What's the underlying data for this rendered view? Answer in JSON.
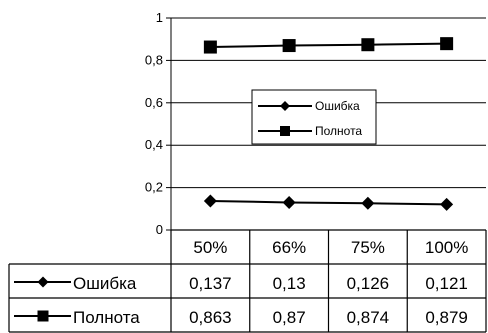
{
  "chart_data": {
    "type": "line",
    "categories": [
      "50%",
      "66%",
      "75%",
      "100%"
    ],
    "series": [
      {
        "name": "Ошибка",
        "marker": "diamond",
        "color": "#000000",
        "values": [
          0.137,
          0.13,
          0.126,
          0.121
        ],
        "labels": [
          "0,137",
          "0,13",
          "0,126",
          "0,121"
        ]
      },
      {
        "name": "Полнота",
        "marker": "square",
        "color": "#000000",
        "values": [
          0.863,
          0.87,
          0.874,
          0.879
        ],
        "labels": [
          "0,863",
          "0,87",
          "0,874",
          "0,879"
        ]
      }
    ],
    "ylim": [
      0,
      1
    ],
    "yticks": [
      0,
      0.2,
      0.4,
      0.6,
      0.8,
      1
    ],
    "ytick_labels": [
      "0",
      "0,2",
      "0,4",
      "0,6",
      "0,8",
      "1"
    ],
    "grid": true,
    "legend": "center",
    "data_table": true
  }
}
